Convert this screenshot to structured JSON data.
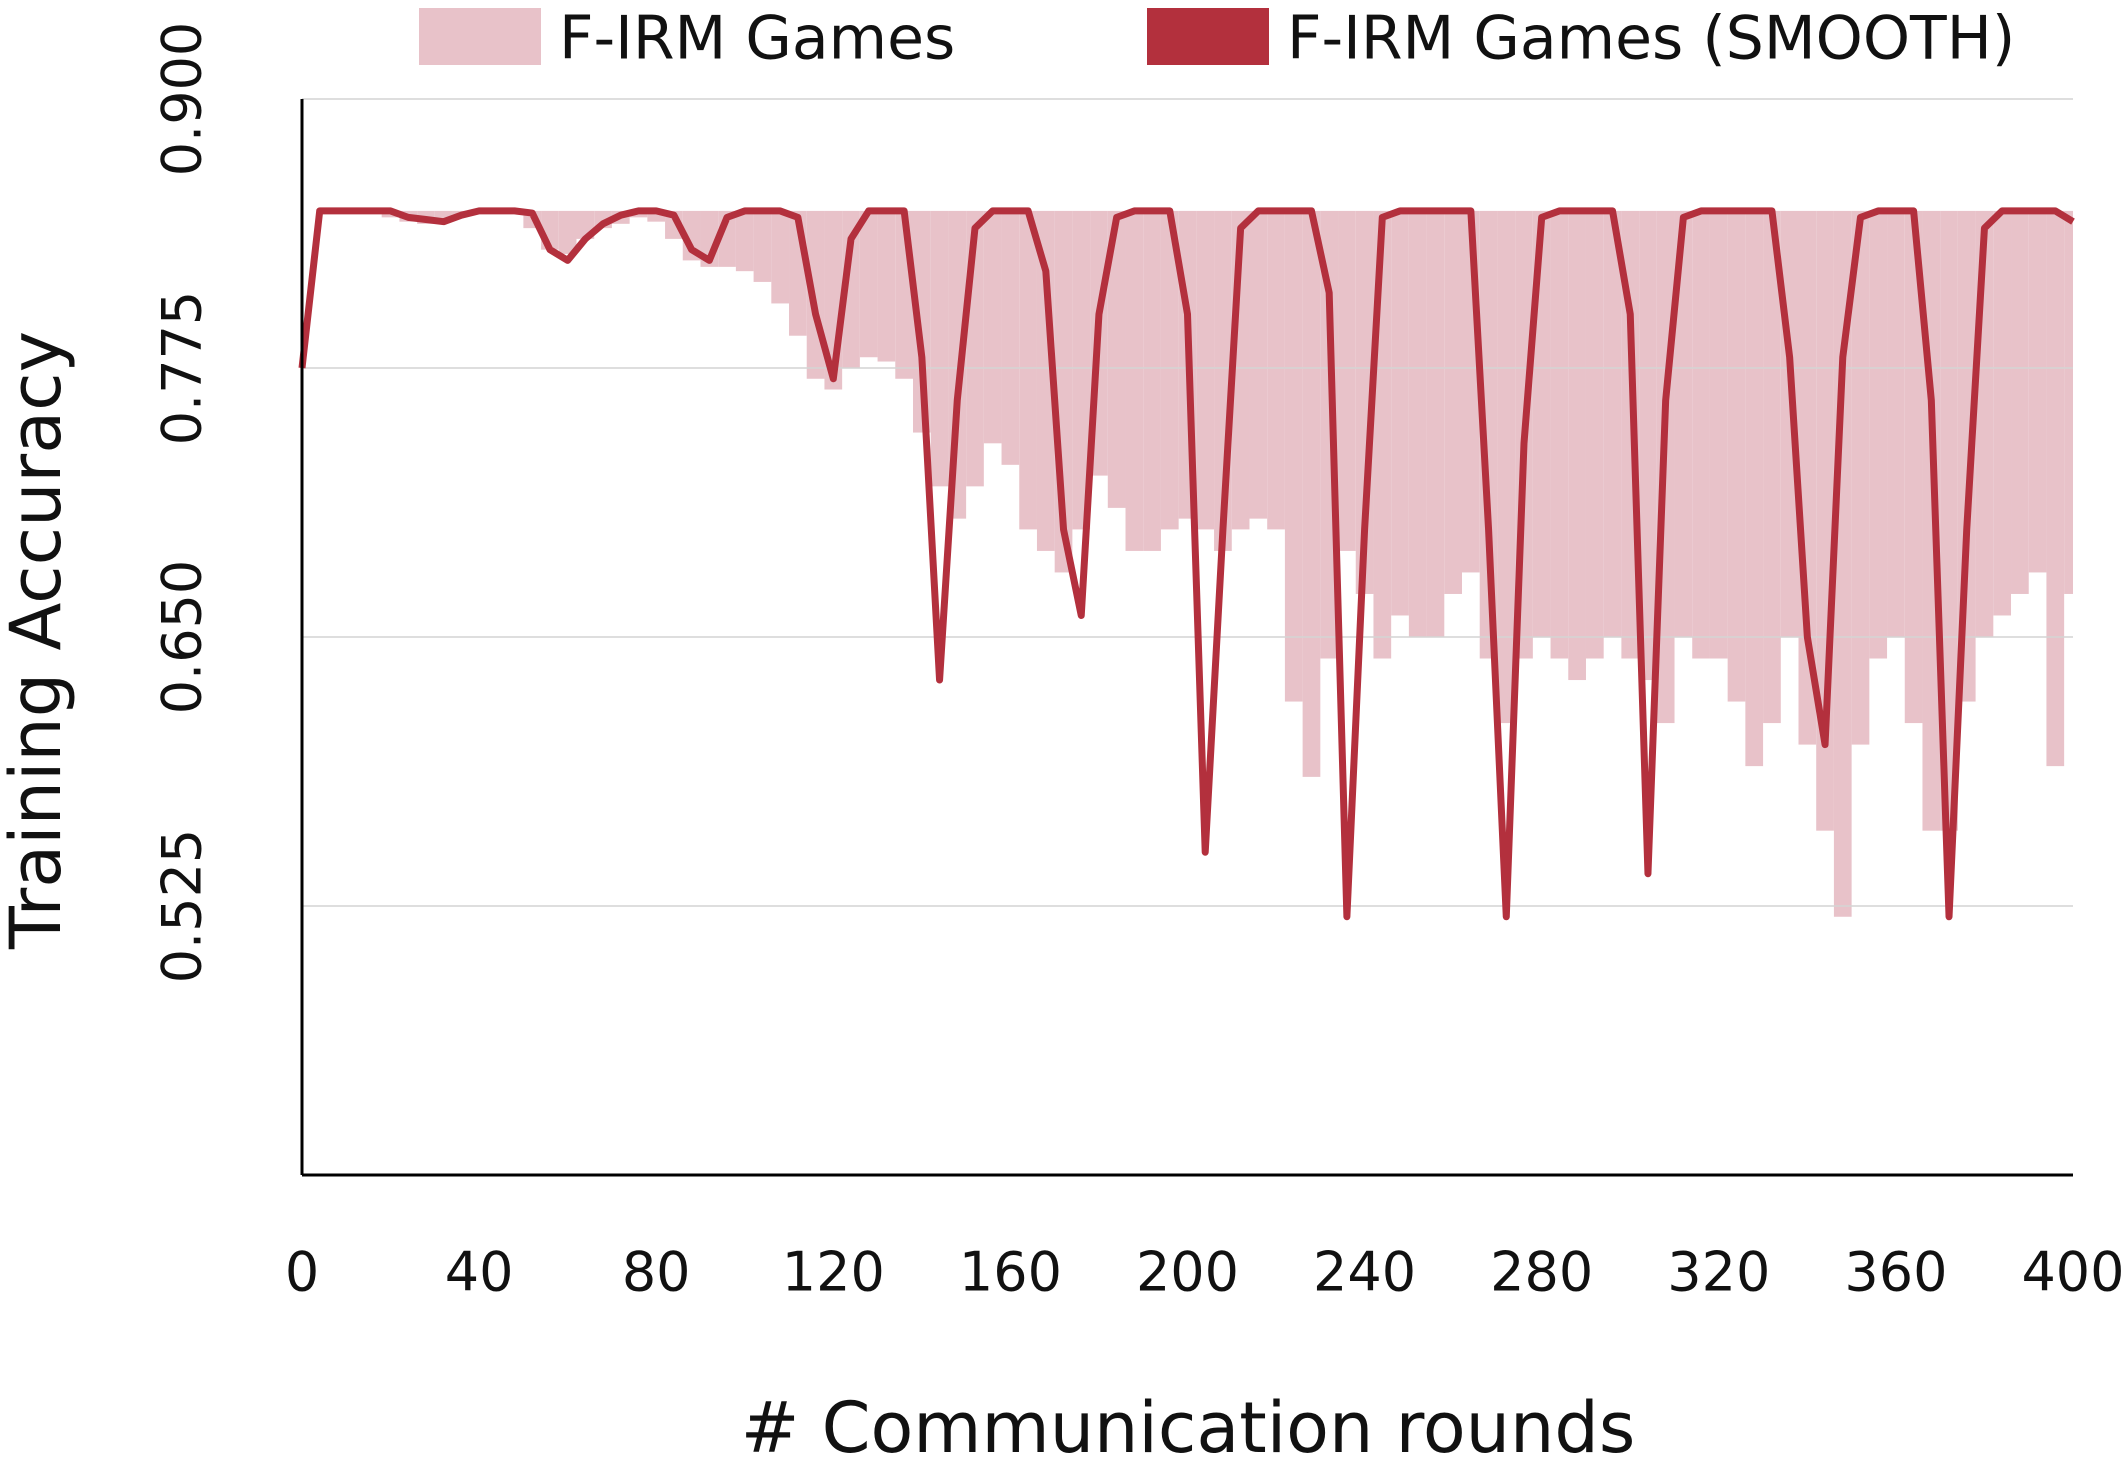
{
  "chart_data": {
    "type": "line",
    "y_label": "Training Accuracy",
    "x_label": "# Communication rounds",
    "xlim": [
      0,
      400
    ],
    "xticks": [
      0,
      40,
      80,
      120,
      160,
      200,
      240,
      280,
      320,
      360,
      400
    ],
    "ylim": [
      0.4,
      0.9
    ],
    "yticks": [
      {
        "value": 0.525,
        "label": "0.525"
      },
      {
        "value": 0.65,
        "label": "0.650"
      },
      {
        "value": 0.775,
        "label": "0.775"
      },
      {
        "value": 0.9,
        "label": "0.900"
      }
    ],
    "grid": true,
    "legend": "top",
    "x": [
      0,
      4,
      8,
      12,
      16,
      20,
      24,
      28,
      32,
      36,
      40,
      44,
      48,
      52,
      56,
      60,
      64,
      68,
      72,
      76,
      80,
      84,
      88,
      92,
      96,
      100,
      104,
      108,
      112,
      116,
      120,
      124,
      128,
      132,
      136,
      140,
      144,
      148,
      152,
      156,
      160,
      164,
      168,
      172,
      176,
      180,
      184,
      188,
      192,
      196,
      200,
      204,
      208,
      212,
      216,
      220,
      224,
      228,
      232,
      236,
      240,
      244,
      248,
      252,
      256,
      260,
      264,
      268,
      272,
      276,
      280,
      284,
      288,
      292,
      296,
      300,
      304,
      308,
      312,
      316,
      320,
      324,
      328,
      332,
      336,
      340,
      344,
      348,
      352,
      356,
      360,
      364,
      368,
      372,
      376,
      380,
      384,
      388,
      392,
      396,
      400
    ],
    "series": [
      {
        "name": "F-IRM Games",
        "kind": "area",
        "color": "#e8c2c9",
        "values": [
          0.848,
          0.848,
          0.848,
          0.848,
          0.848,
          0.845,
          0.843,
          0.842,
          0.843,
          0.846,
          0.848,
          0.848,
          0.848,
          0.84,
          0.83,
          0.828,
          0.835,
          0.84,
          0.842,
          0.845,
          0.843,
          0.835,
          0.825,
          0.822,
          0.822,
          0.82,
          0.815,
          0.805,
          0.79,
          0.77,
          0.765,
          0.775,
          0.78,
          0.778,
          0.77,
          0.745,
          0.72,
          0.705,
          0.72,
          0.74,
          0.73,
          0.7,
          0.69,
          0.68,
          0.7,
          0.725,
          0.71,
          0.69,
          0.69,
          0.7,
          0.705,
          0.7,
          0.69,
          0.7,
          0.705,
          0.7,
          0.62,
          0.585,
          0.64,
          0.69,
          0.67,
          0.64,
          0.66,
          0.65,
          0.65,
          0.67,
          0.68,
          0.64,
          0.61,
          0.64,
          0.65,
          0.64,
          0.63,
          0.64,
          0.65,
          0.64,
          0.63,
          0.61,
          0.65,
          0.64,
          0.64,
          0.62,
          0.59,
          0.61,
          0.65,
          0.6,
          0.56,
          0.52,
          0.6,
          0.64,
          0.65,
          0.61,
          0.56,
          0.56,
          0.62,
          0.65,
          0.66,
          0.67,
          0.68,
          0.59,
          0.67
        ]
      },
      {
        "name": "F-IRM Games (SMOOTH)",
        "kind": "line",
        "color": "#b3303d",
        "values": [
          0.775,
          0.848,
          0.848,
          0.848,
          0.848,
          0.848,
          0.845,
          0.844,
          0.843,
          0.846,
          0.848,
          0.848,
          0.848,
          0.847,
          0.83,
          0.825,
          0.835,
          0.842,
          0.846,
          0.848,
          0.848,
          0.846,
          0.83,
          0.825,
          0.845,
          0.848,
          0.848,
          0.848,
          0.845,
          0.8,
          0.77,
          0.835,
          0.848,
          0.848,
          0.848,
          0.78,
          0.63,
          0.76,
          0.84,
          0.848,
          0.848,
          0.848,
          0.82,
          0.7,
          0.66,
          0.8,
          0.845,
          0.848,
          0.848,
          0.848,
          0.8,
          0.55,
          0.7,
          0.84,
          0.848,
          0.848,
          0.848,
          0.848,
          0.81,
          0.52,
          0.7,
          0.845,
          0.848,
          0.848,
          0.848,
          0.848,
          0.848,
          0.7,
          0.52,
          0.74,
          0.845,
          0.848,
          0.848,
          0.848,
          0.848,
          0.8,
          0.54,
          0.76,
          0.845,
          0.848,
          0.848,
          0.848,
          0.848,
          0.848,
          0.78,
          0.65,
          0.6,
          0.78,
          0.845,
          0.848,
          0.848,
          0.848,
          0.76,
          0.52,
          0.7,
          0.84,
          0.848,
          0.848,
          0.848,
          0.848,
          0.843
        ]
      }
    ]
  }
}
